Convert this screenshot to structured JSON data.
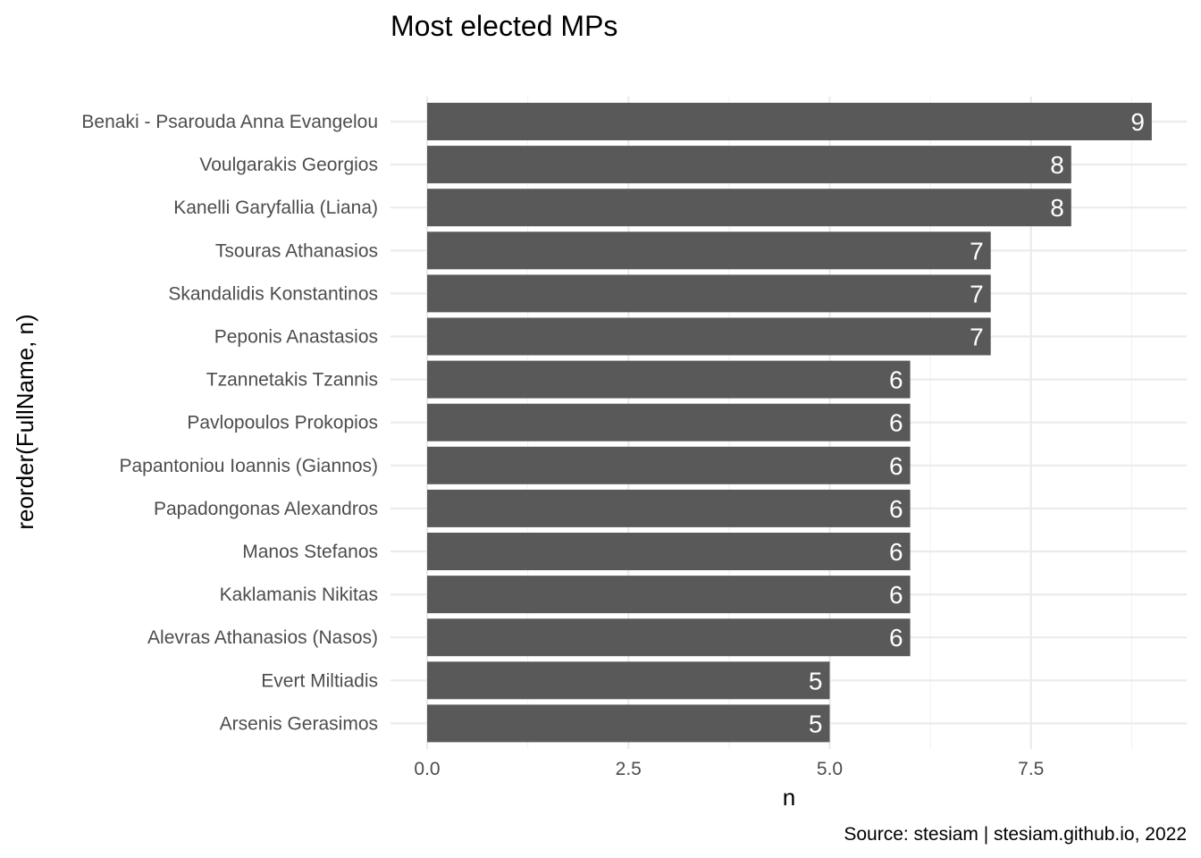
{
  "chart_data": {
    "type": "bar",
    "orientation": "horizontal",
    "title": "Most elected MPs",
    "xlabel": "n",
    "ylabel": "reorder(FullName, n)",
    "caption": "Source: stesiam | stesiam.github.io, 2022",
    "categories": [
      "Benaki - Psarouda Anna Evangelou",
      "Voulgarakis Georgios",
      "Kanelli Garyfallia (Liana)",
      "Tsouras Athanasios",
      "Skandalidis Konstantinos",
      "Peponis Anastasios",
      "Tzannetakis Tzannis",
      "Pavlopoulos Prokopios",
      "Papantoniou Ioannis (Giannos)",
      "Papadongonas Alexandros",
      "Manos Stefanos",
      "Kaklamanis Nikitas",
      "Alevras Athanasios (Nasos)",
      "Evert Miltiadis",
      "Arsenis Gerasimos"
    ],
    "values": [
      9,
      8,
      8,
      7,
      7,
      7,
      6,
      6,
      6,
      6,
      6,
      6,
      6,
      5,
      5
    ],
    "xlim": [
      0,
      9
    ],
    "x_ticks": [
      "0.0",
      "2.5",
      "5.0",
      "7.5"
    ],
    "x_tick_values": [
      0,
      2.5,
      5,
      7.5
    ],
    "bar_color": "#595959",
    "label_color": "#ffffff",
    "grid": true,
    "legend": "none"
  }
}
